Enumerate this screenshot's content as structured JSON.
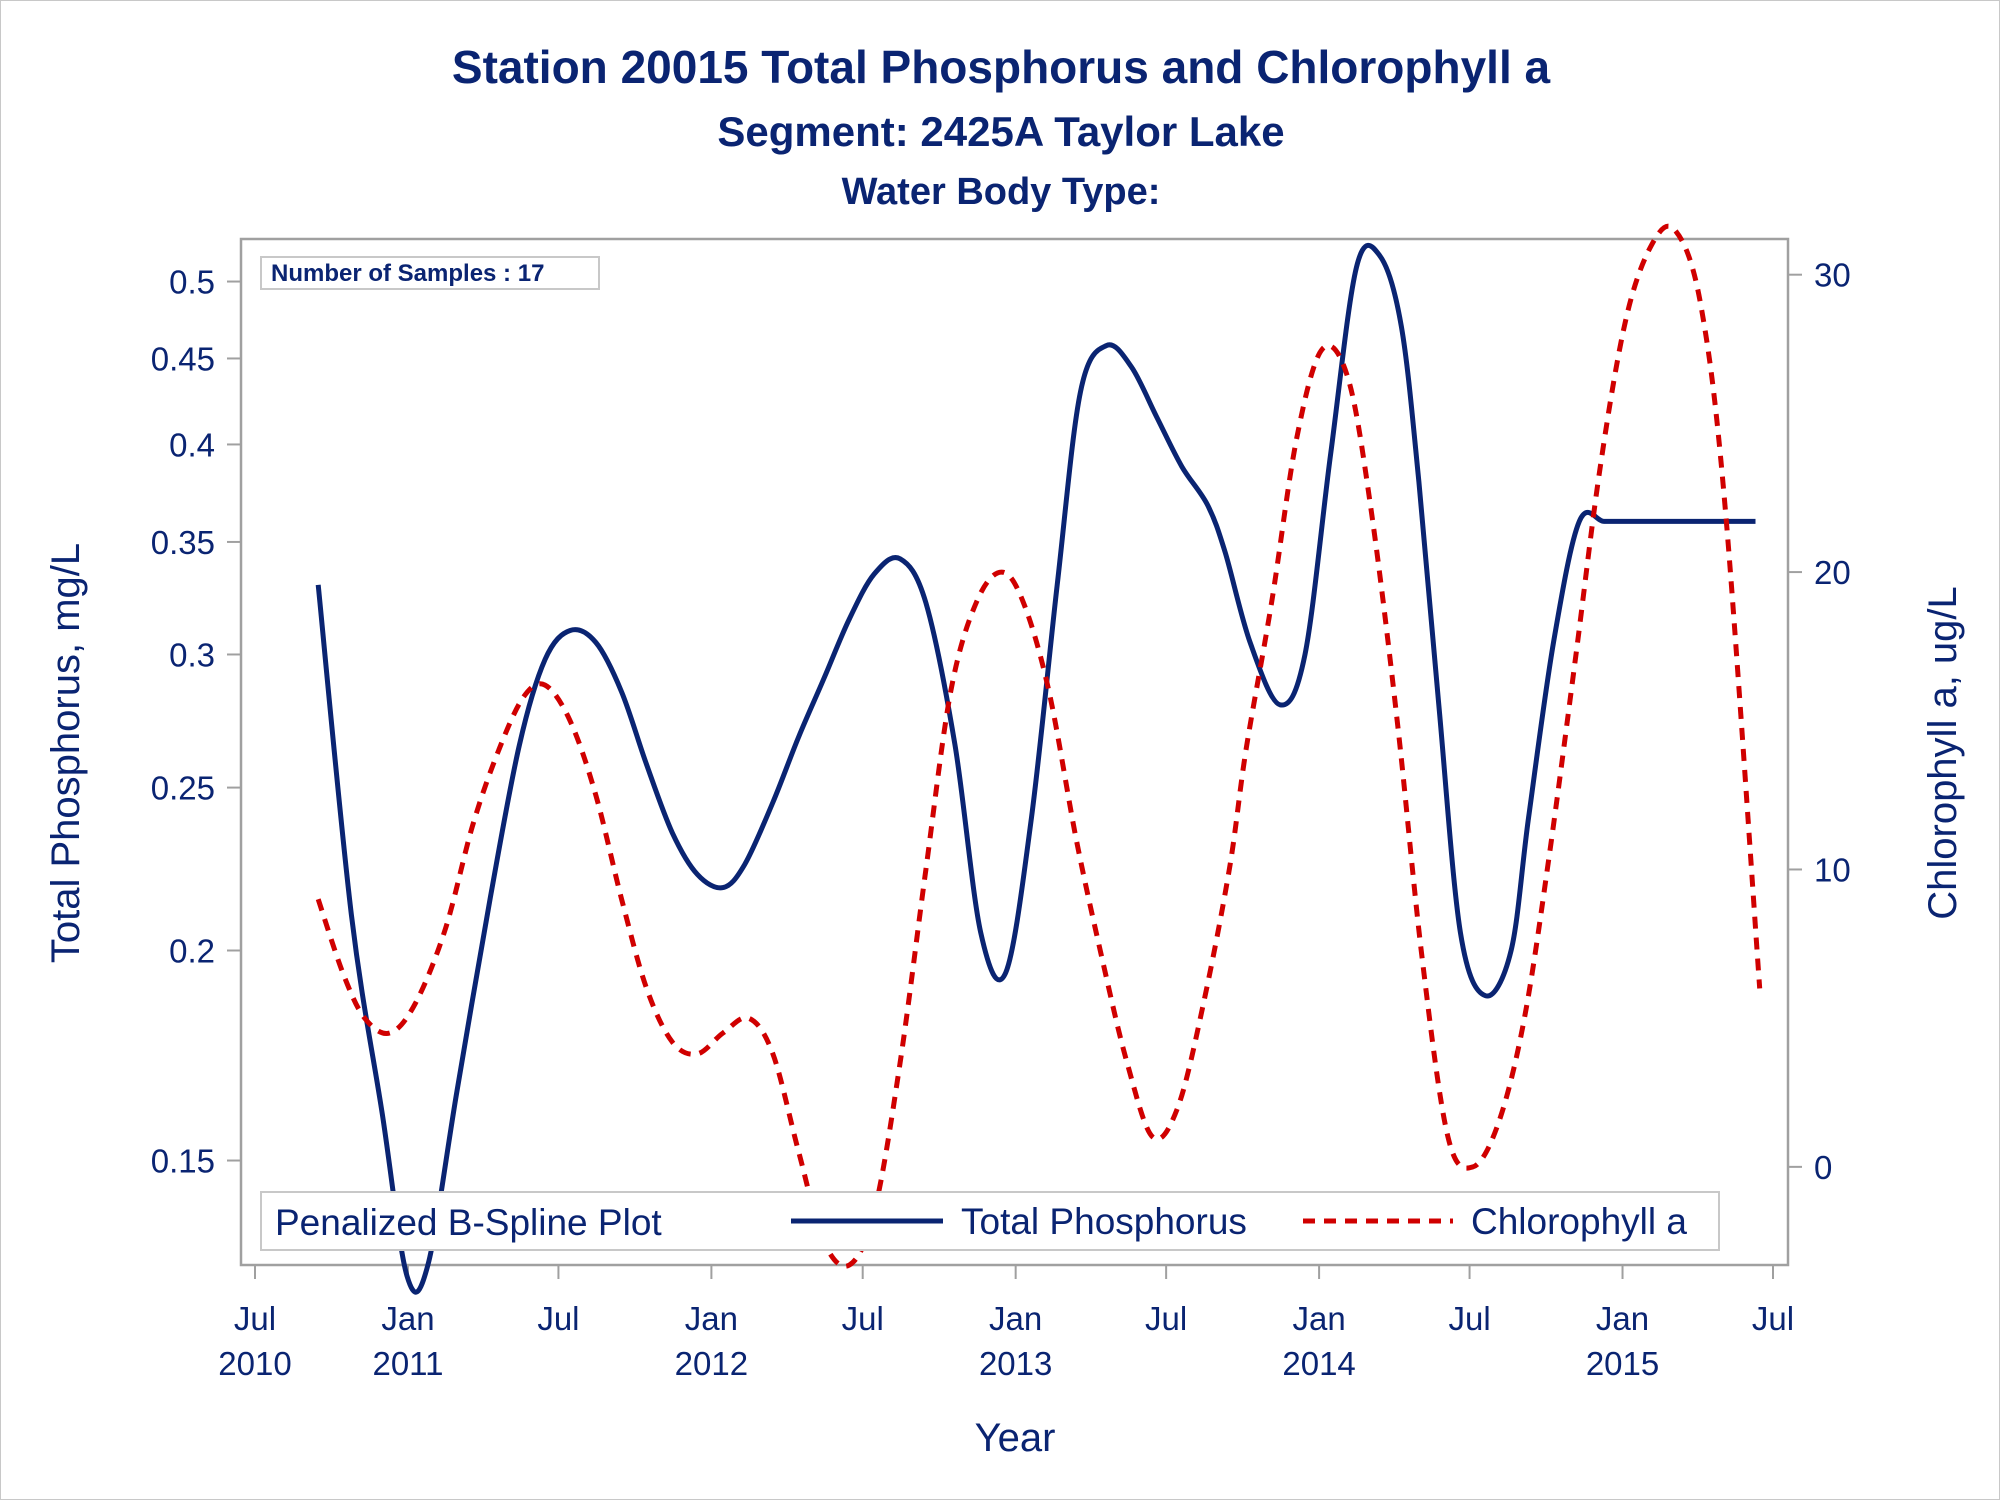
{
  "titles": {
    "line1": "Station 20015  Total Phosphorus and Chlorophyll a",
    "line2": "Segment: 2425A  Taylor Lake",
    "line3": "Water Body Type:"
  },
  "inset_label": "Number of Samples : 17",
  "legend": {
    "title": "Penalized B-Spline Plot",
    "entries": [
      "Total Phosphorus",
      "Chlorophyll a"
    ]
  },
  "colors": {
    "text": "#0a2472",
    "phosphorus": "#0a2472",
    "chlorophyll": "#d00000",
    "axis": "#a0a0a0"
  },
  "chart_data": {
    "type": "line",
    "xlabel": "Year",
    "ylabel": "Total Phosphorus, mg/L",
    "y2label": "Chlorophyll a, ug/L",
    "xlim": [
      "2010-07-01",
      "2015-07-01"
    ],
    "ylim": [
      0.13,
      0.53
    ],
    "yscale": "log",
    "y2lim": [
      -3.3,
      31.2
    ],
    "x_ticks": [
      {
        "date": "2010-07-01",
        "line1": "Jul",
        "line2": "2010"
      },
      {
        "date": "2011-01-01",
        "line1": "Jan",
        "line2": "2011"
      },
      {
        "date": "2011-07-01",
        "line1": "Jul",
        "line2": ""
      },
      {
        "date": "2012-01-01",
        "line1": "Jan",
        "line2": "2012"
      },
      {
        "date": "2012-07-01",
        "line1": "Jul",
        "line2": ""
      },
      {
        "date": "2013-01-01",
        "line1": "Jan",
        "line2": "2013"
      },
      {
        "date": "2013-07-01",
        "line1": "Jul",
        "line2": ""
      },
      {
        "date": "2014-01-01",
        "line1": "Jan",
        "line2": "2014"
      },
      {
        "date": "2014-07-01",
        "line1": "Jul",
        "line2": ""
      },
      {
        "date": "2015-01-01",
        "line1": "Jan",
        "line2": "2015"
      },
      {
        "date": "2015-07-01",
        "line1": "Jul",
        "line2": ""
      }
    ],
    "y_ticks": [
      {
        "value": 0.15,
        "label": "0.15"
      },
      {
        "value": 0.2,
        "label": "0.2"
      },
      {
        "value": 0.25,
        "label": "0.25"
      },
      {
        "value": 0.3,
        "label": "0.3"
      },
      {
        "value": 0.35,
        "label": "0.35"
      },
      {
        "value": 0.4,
        "label": "0.4"
      },
      {
        "value": 0.45,
        "label": "0.45"
      },
      {
        "value": 0.5,
        "label": "0.5"
      }
    ],
    "y2_ticks": [
      {
        "value": 0,
        "label": "0"
      },
      {
        "value": 10,
        "label": "10"
      },
      {
        "value": 20,
        "label": "20"
      },
      {
        "value": 30,
        "label": "30"
      }
    ],
    "grid": false,
    "legend_position": "bottom-inside",
    "series": [
      {
        "name": "Total Phosphorus",
        "axis": "left",
        "style": "solid",
        "x": [
          "2010-09-15",
          "2010-10-25",
          "2010-12-01",
          "2010-12-31",
          "2011-01-25",
          "2011-03-01",
          "2011-04-10",
          "2011-05-15",
          "2011-06-15",
          "2011-07-15",
          "2011-08-15",
          "2011-09-15",
          "2011-10-15",
          "2011-11-15",
          "2011-12-15",
          "2012-01-15",
          "2012-02-10",
          "2012-03-15",
          "2012-04-15",
          "2012-05-15",
          "2012-06-15",
          "2012-07-15",
          "2012-08-15",
          "2012-09-15",
          "2012-10-20",
          "2012-11-20",
          "2012-12-20",
          "2013-01-20",
          "2013-02-20",
          "2013-03-20",
          "2013-04-20",
          "2013-05-20",
          "2013-06-20",
          "2013-07-20",
          "2013-08-20",
          "2013-09-10",
          "2013-10-10",
          "2013-11-15",
          "2013-12-15",
          "2014-01-15",
          "2014-02-15",
          "2014-03-15",
          "2014-04-10",
          "2014-05-01",
          "2014-05-25",
          "2014-06-20",
          "2014-07-20",
          "2014-08-20",
          "2014-09-10",
          "2014-10-10",
          "2014-11-10",
          "2014-12-10",
          "2015-01-10",
          "2015-02-10",
          "2015-03-15",
          "2015-04-15",
          "2015-05-15",
          "2015-06-10"
        ],
        "values": [
          0.33,
          0.21,
          0.16,
          0.128,
          0.13,
          0.165,
          0.215,
          0.265,
          0.298,
          0.31,
          0.305,
          0.285,
          0.258,
          0.235,
          0.222,
          0.218,
          0.225,
          0.245,
          0.268,
          0.29,
          0.315,
          0.335,
          0.342,
          0.322,
          0.265,
          0.205,
          0.194,
          0.24,
          0.33,
          0.43,
          0.458,
          0.445,
          0.415,
          0.388,
          0.368,
          0.345,
          0.305,
          0.28,
          0.3,
          0.395,
          0.51,
          0.518,
          0.47,
          0.38,
          0.28,
          0.205,
          0.188,
          0.2,
          0.24,
          0.305,
          0.36,
          0.36,
          0.36,
          0.36,
          0.36,
          0.36,
          0.36,
          0.36
        ]
      },
      {
        "name": "Chlorophyll a",
        "axis": "right",
        "style": "dashed",
        "x": [
          "2010-09-15",
          "2010-10-15",
          "2010-11-10",
          "2010-12-10",
          "2011-01-10",
          "2011-02-15",
          "2011-03-20",
          "2011-04-20",
          "2011-05-20",
          "2011-06-15",
          "2011-07-15",
          "2011-08-15",
          "2011-09-15",
          "2011-10-15",
          "2011-11-15",
          "2011-12-15",
          "2012-01-15",
          "2012-02-15",
          "2012-03-15",
          "2012-04-15",
          "2012-05-15",
          "2012-06-15",
          "2012-07-15",
          "2012-08-15",
          "2012-09-15",
          "2012-10-15",
          "2012-11-15",
          "2012-12-15",
          "2013-01-10",
          "2013-02-10",
          "2013-03-15",
          "2013-04-15",
          "2013-05-15",
          "2013-06-15",
          "2013-07-15",
          "2013-08-15",
          "2013-09-15",
          "2013-10-05",
          "2013-11-05",
          "2013-12-05",
          "2014-01-05",
          "2014-02-05",
          "2014-03-05",
          "2014-04-05",
          "2014-05-05",
          "2014-06-05",
          "2014-07-05",
          "2014-08-05",
          "2014-09-05",
          "2014-10-05",
          "2014-11-05",
          "2014-12-05",
          "2015-01-05",
          "2015-02-05",
          "2015-03-05",
          "2015-04-05",
          "2015-05-05",
          "2015-06-15"
        ],
        "values": [
          9.0,
          6.5,
          5.0,
          4.5,
          5.5,
          8.0,
          11.5,
          14.0,
          15.8,
          16.2,
          15.0,
          12.5,
          9.0,
          6.0,
          4.2,
          3.8,
          4.5,
          5.0,
          3.8,
          0.5,
          -2.5,
          -3.3,
          -1.5,
          3.5,
          10.0,
          16.0,
          19.0,
          20.0,
          19.0,
          16.0,
          11.0,
          7.0,
          3.5,
          1.0,
          2.0,
          5.5,
          10.0,
          14.0,
          19.0,
          24.5,
          27.5,
          26.5,
          22.0,
          15.0,
          7.0,
          1.0,
          0.0,
          1.5,
          5.0,
          10.5,
          17.0,
          23.5,
          28.5,
          31.0,
          31.5,
          29.0,
          22.0,
          6.0
        ]
      }
    ]
  }
}
